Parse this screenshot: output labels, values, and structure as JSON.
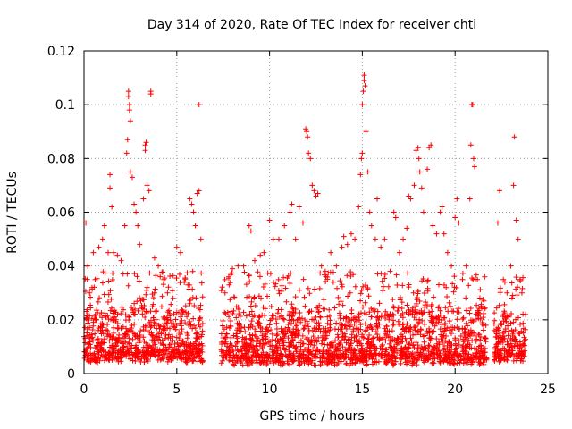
{
  "chart_data": {
    "type": "scatter",
    "title": "Day 314 of 2020, Rate Of TEC Index for receiver chti",
    "xlabel": "GPS time / hours",
    "ylabel": "ROTI / TECUs",
    "xlim": [
      0,
      25
    ],
    "ylim": [
      0,
      0.12
    ],
    "xticks": [
      0,
      5,
      10,
      15,
      20,
      25
    ],
    "xtick_labels": [
      "0",
      "5",
      "10",
      "15",
      "20",
      "25"
    ],
    "yticks": [
      0,
      0.02,
      0.04,
      0.06,
      0.08,
      0.1,
      0.12
    ],
    "ytick_labels": [
      "0",
      "0.02",
      "0.04",
      "0.06",
      "0.08",
      "0.1",
      "0.12"
    ],
    "grid": true,
    "marker": "+",
    "color": "#ff0000",
    "data_gaps_hours": [
      [
        6.4,
        7.4
      ],
      [
        21.7,
        22.1
      ]
    ],
    "series": [
      {
        "name": "ROTI",
        "points": [
          [
            0.1,
            0.056
          ],
          [
            0.2,
            0.04
          ],
          [
            0.3,
            0.03
          ],
          [
            0.5,
            0.045
          ],
          [
            0.6,
            0.035
          ],
          [
            0.8,
            0.047
          ],
          [
            1.0,
            0.05
          ],
          [
            1.1,
            0.055
          ],
          [
            1.3,
            0.045
          ],
          [
            1.4,
            0.074
          ],
          [
            1.4,
            0.069
          ],
          [
            1.5,
            0.062
          ],
          [
            1.6,
            0.045
          ],
          [
            1.8,
            0.044
          ],
          [
            2.0,
            0.042
          ],
          [
            2.2,
            0.055
          ],
          [
            2.3,
            0.082
          ],
          [
            2.35,
            0.087
          ],
          [
            2.4,
            0.105
          ],
          [
            2.4,
            0.103
          ],
          [
            2.45,
            0.1
          ],
          [
            2.45,
            0.098
          ],
          [
            2.5,
            0.094
          ],
          [
            2.5,
            0.075
          ],
          [
            2.6,
            0.073
          ],
          [
            2.7,
            0.063
          ],
          [
            2.8,
            0.06
          ],
          [
            2.9,
            0.055
          ],
          [
            3.0,
            0.048
          ],
          [
            3.2,
            0.065
          ],
          [
            3.3,
            0.085
          ],
          [
            3.3,
            0.083
          ],
          [
            3.35,
            0.086
          ],
          [
            3.4,
            0.07
          ],
          [
            3.5,
            0.068
          ],
          [
            3.6,
            0.104
          ],
          [
            3.6,
            0.105
          ],
          [
            3.8,
            0.043
          ],
          [
            4.0,
            0.04
          ],
          [
            4.3,
            0.035
          ],
          [
            4.5,
            0.03
          ],
          [
            4.8,
            0.028
          ],
          [
            5.0,
            0.047
          ],
          [
            5.2,
            0.045
          ],
          [
            5.6,
            0.033
          ],
          [
            5.7,
            0.065
          ],
          [
            5.8,
            0.063
          ],
          [
            5.9,
            0.06
          ],
          [
            6.0,
            0.055
          ],
          [
            6.1,
            0.067
          ],
          [
            6.2,
            0.068
          ],
          [
            6.2,
            0.1
          ],
          [
            6.3,
            0.05
          ],
          [
            7.6,
            0.03
          ],
          [
            7.8,
            0.036
          ],
          [
            8.0,
            0.039
          ],
          [
            8.3,
            0.04
          ],
          [
            8.6,
            0.04
          ],
          [
            8.9,
            0.055
          ],
          [
            9.0,
            0.053
          ],
          [
            9.2,
            0.042
          ],
          [
            9.5,
            0.044
          ],
          [
            9.7,
            0.045
          ],
          [
            10.0,
            0.057
          ],
          [
            10.2,
            0.05
          ],
          [
            10.5,
            0.05
          ],
          [
            10.8,
            0.055
          ],
          [
            11.1,
            0.06
          ],
          [
            11.2,
            0.063
          ],
          [
            11.4,
            0.05
          ],
          [
            11.6,
            0.062
          ],
          [
            11.8,
            0.056
          ],
          [
            11.95,
            0.091
          ],
          [
            12.0,
            0.09
          ],
          [
            12.05,
            0.088
          ],
          [
            12.1,
            0.082
          ],
          [
            12.2,
            0.08
          ],
          [
            12.3,
            0.07
          ],
          [
            12.4,
            0.068
          ],
          [
            12.5,
            0.066
          ],
          [
            12.6,
            0.067
          ],
          [
            12.8,
            0.04
          ],
          [
            13.0,
            0.038
          ],
          [
            13.3,
            0.045
          ],
          [
            13.6,
            0.04
          ],
          [
            13.9,
            0.047
          ],
          [
            14.0,
            0.051
          ],
          [
            14.2,
            0.048
          ],
          [
            14.4,
            0.052
          ],
          [
            14.6,
            0.05
          ],
          [
            14.8,
            0.062
          ],
          [
            14.9,
            0.074
          ],
          [
            14.95,
            0.08
          ],
          [
            15.0,
            0.082
          ],
          [
            15.0,
            0.1
          ],
          [
            15.05,
            0.105
          ],
          [
            15.1,
            0.109
          ],
          [
            15.1,
            0.111
          ],
          [
            15.15,
            0.107
          ],
          [
            15.2,
            0.09
          ],
          [
            15.3,
            0.075
          ],
          [
            15.4,
            0.06
          ],
          [
            15.5,
            0.055
          ],
          [
            15.7,
            0.05
          ],
          [
            15.8,
            0.065
          ],
          [
            16.0,
            0.047
          ],
          [
            16.2,
            0.05
          ],
          [
            16.5,
            0.038
          ],
          [
            16.7,
            0.06
          ],
          [
            16.8,
            0.058
          ],
          [
            17.0,
            0.045
          ],
          [
            17.2,
            0.05
          ],
          [
            17.4,
            0.054
          ],
          [
            17.5,
            0.066
          ],
          [
            17.6,
            0.065
          ],
          [
            17.8,
            0.07
          ],
          [
            17.9,
            0.083
          ],
          [
            18.0,
            0.084
          ],
          [
            18.05,
            0.08
          ],
          [
            18.1,
            0.075
          ],
          [
            18.2,
            0.069
          ],
          [
            18.3,
            0.06
          ],
          [
            18.5,
            0.076
          ],
          [
            18.6,
            0.084
          ],
          [
            18.7,
            0.085
          ],
          [
            18.8,
            0.055
          ],
          [
            19.0,
            0.052
          ],
          [
            19.2,
            0.06
          ],
          [
            19.3,
            0.062
          ],
          [
            19.4,
            0.052
          ],
          [
            19.6,
            0.045
          ],
          [
            19.8,
            0.04
          ],
          [
            20.0,
            0.058
          ],
          [
            20.1,
            0.065
          ],
          [
            20.2,
            0.056
          ],
          [
            20.4,
            0.035
          ],
          [
            20.6,
            0.04
          ],
          [
            20.8,
            0.065
          ],
          [
            20.85,
            0.085
          ],
          [
            20.9,
            0.1
          ],
          [
            20.95,
            0.1
          ],
          [
            21.0,
            0.08
          ],
          [
            21.05,
            0.077
          ],
          [
            21.2,
            0.035
          ],
          [
            21.4,
            0.025
          ],
          [
            22.3,
            0.056
          ],
          [
            22.4,
            0.068
          ],
          [
            22.6,
            0.035
          ],
          [
            22.8,
            0.03
          ],
          [
            23.0,
            0.04
          ],
          [
            23.15,
            0.07
          ],
          [
            23.2,
            0.088
          ],
          [
            23.3,
            0.057
          ],
          [
            23.4,
            0.05
          ],
          [
            23.5,
            0.035
          ],
          [
            23.6,
            0.03
          ],
          [
            23.8,
            0.022
          ]
        ],
        "dense_band": [
          {
            "from": 0.0,
            "to": 6.4,
            "min": 0.004,
            "max": 0.022
          },
          {
            "from": 7.4,
            "to": 21.7,
            "min": 0.003,
            "max": 0.022
          },
          {
            "from": 22.1,
            "to": 23.8,
            "min": 0.004,
            "max": 0.02
          }
        ]
      }
    ]
  }
}
